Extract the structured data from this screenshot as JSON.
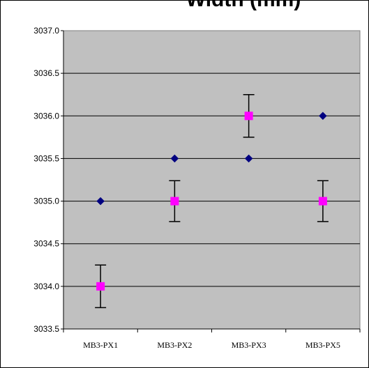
{
  "chart_data": {
    "type": "scatter",
    "title": "Width (mm)",
    "xlabel": "",
    "ylabel": "",
    "categories": [
      "MB3-PX1",
      "MB3-PX2",
      "MB3-PX3",
      "MB3-PX5"
    ],
    "ylim": [
      3033.5,
      3037.0
    ],
    "yticks": [
      "3033.5",
      "3034.0",
      "3034.5",
      "3035.0",
      "3035.5",
      "3036.0",
      "3036.5",
      "3037.0"
    ],
    "grid": true,
    "legend": "none",
    "plot_background": "#c0c0c0",
    "series": [
      {
        "marker": "diamond",
        "color": "#000080",
        "values": [
          3035.0,
          3035.5,
          3035.5,
          3036.0
        ]
      },
      {
        "marker": "square",
        "color": "#ff00ff",
        "values": [
          3034.0,
          3035.0,
          3036.0,
          3035.0
        ],
        "error": [
          0.25,
          0.24,
          0.25,
          0.24
        ]
      }
    ]
  }
}
